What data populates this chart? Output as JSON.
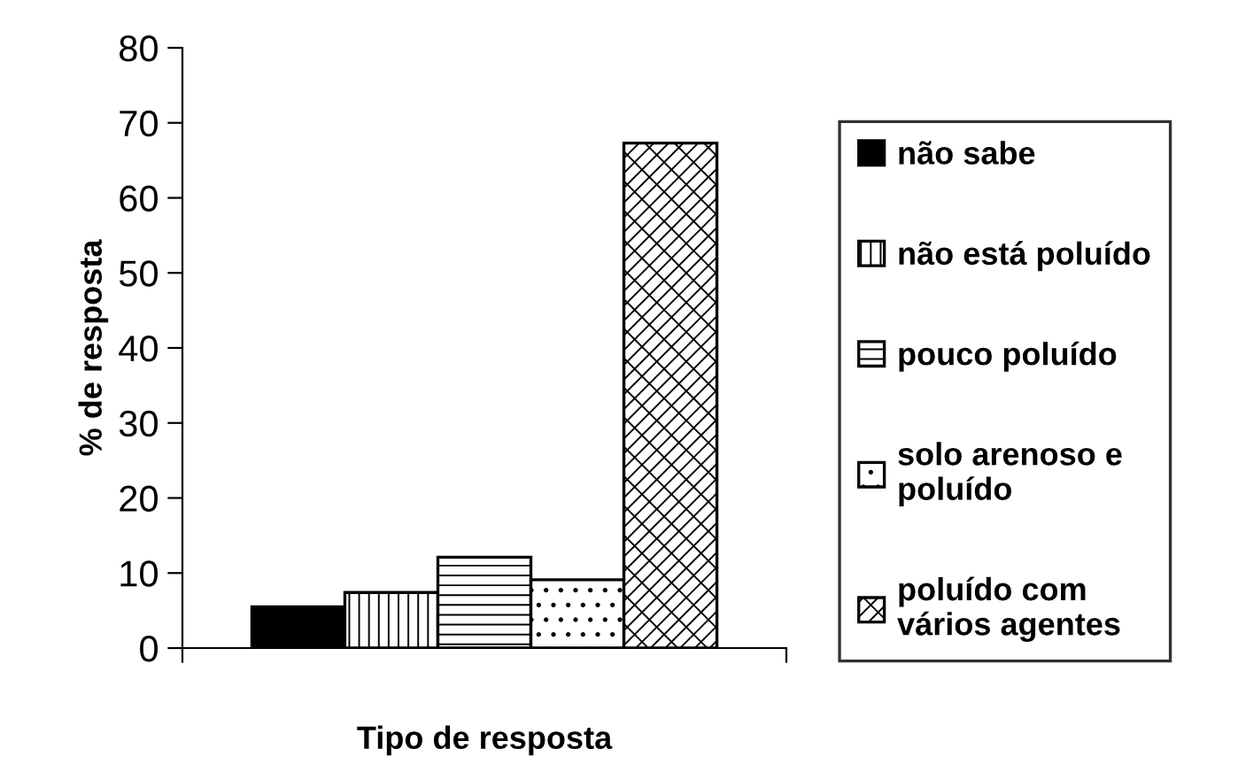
{
  "chart_data": {
    "type": "bar",
    "xlabel": "Tipo de resposta",
    "ylabel": "% de resposta",
    "categories": [
      null
    ],
    "series": [
      {
        "name": "não sabe",
        "color": "#000000",
        "values": [
          5.5
        ]
      },
      {
        "name": "não está poluído",
        "color": "#000000",
        "values": [
          7.4
        ]
      },
      {
        "name": "pouco poluído",
        "color": "#000000",
        "values": [
          12.1
        ]
      },
      {
        "name": "solo arenoso e\npoluído",
        "color": "#000000",
        "values": [
          9.1
        ]
      },
      {
        "name": "poluído com\nvários agentes",
        "color": "#000000",
        "values": [
          67.3
        ]
      }
    ],
    "ylim": [
      0,
      80
    ],
    "yticks": [
      0,
      10,
      20,
      30,
      40,
      50,
      60,
      70,
      80
    ],
    "grid": false,
    "legend": "right"
  }
}
